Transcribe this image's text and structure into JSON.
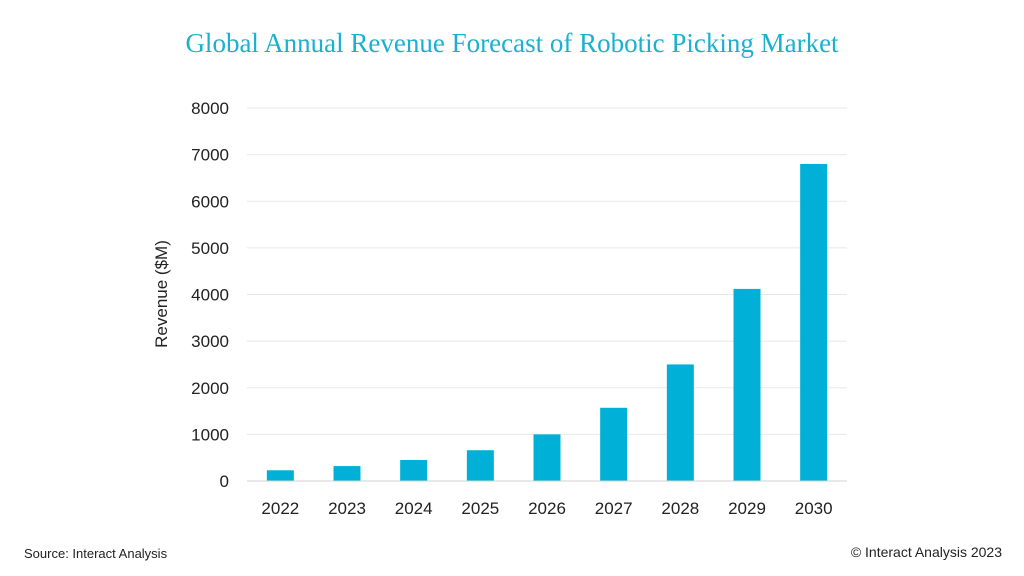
{
  "header": {
    "title": "Global Annual Revenue Forecast of Robotic Picking Market"
  },
  "footer": {
    "source": "Source: Interact Analysis",
    "copyright": "© Interact Analysis 2023"
  },
  "colors": {
    "title": "#1ab0d0",
    "bar": "#00b0d6",
    "grid": "#e8e8e8",
    "text": "#222222"
  },
  "chart_data": {
    "type": "bar",
    "title": "Global Annual Revenue Forecast of Robotic Picking Market",
    "xlabel": "",
    "ylabel": "Revenue ($M)",
    "categories": [
      "2022",
      "2023",
      "2024",
      "2025",
      "2026",
      "2027",
      "2028",
      "2029",
      "2030"
    ],
    "series": [
      {
        "values": [
          230,
          320,
          450,
          660,
          1000,
          1570,
          2500,
          4120,
          6800
        ]
      }
    ],
    "ylim": [
      0,
      8000
    ],
    "yticks": [
      0,
      1000,
      2000,
      3000,
      4000,
      5000,
      6000,
      7000,
      8000
    ],
    "grid": true,
    "legend": "none"
  }
}
